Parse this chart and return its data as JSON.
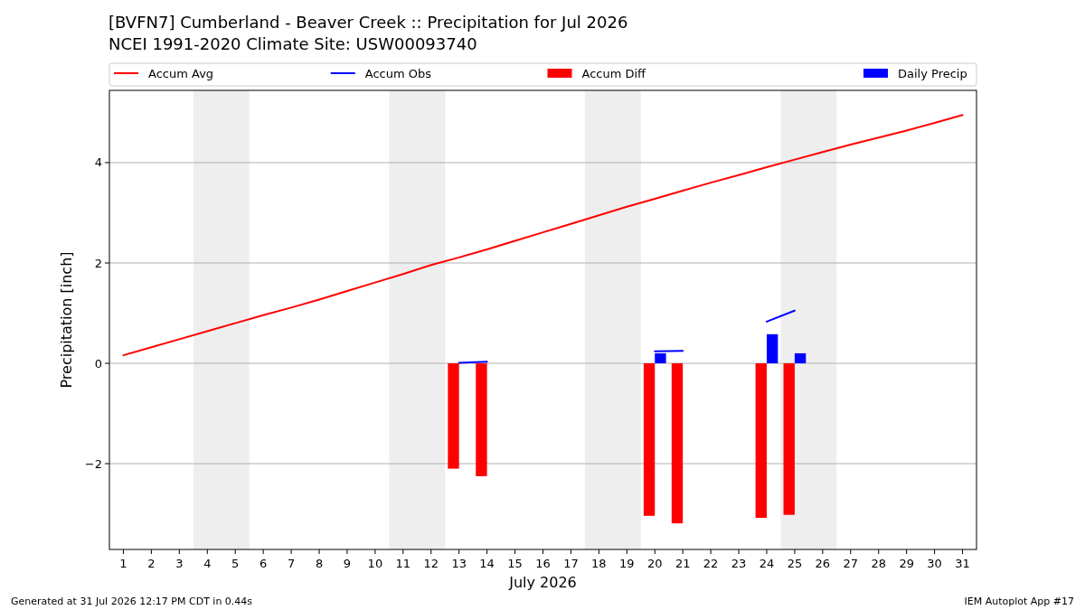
{
  "chart_data": {
    "type": "line",
    "title": "[BVFN7] Cumberland - Beaver Creek :: Precipitation for Jul 2026",
    "subtitle": "NCEI 1991-2020 Climate Site: USW00093740",
    "xlabel": "July 2026",
    "ylabel": "Precipitation [inch]",
    "x": [
      1,
      2,
      3,
      4,
      5,
      6,
      7,
      8,
      9,
      10,
      11,
      12,
      13,
      14,
      15,
      16,
      17,
      18,
      19,
      20,
      21,
      22,
      23,
      24,
      25,
      26,
      27,
      28,
      29,
      30,
      31
    ],
    "series": [
      {
        "name": "Accum Avg",
        "color": "#ff0000",
        "values": [
          0.16,
          0.32,
          0.48,
          0.64,
          0.8,
          0.96,
          1.11,
          1.27,
          1.44,
          1.61,
          1.78,
          1.96,
          2.11,
          2.27,
          2.44,
          2.61,
          2.78,
          2.95,
          3.12,
          3.28,
          3.44,
          3.6,
          3.75,
          3.91,
          4.06,
          4.21,
          4.36,
          4.5,
          4.64,
          4.79,
          4.95
        ]
      },
      {
        "name": "Accum Obs",
        "color": "#0000ff",
        "values": [
          null,
          null,
          null,
          null,
          null,
          null,
          null,
          null,
          null,
          null,
          null,
          null,
          0.01,
          0.03,
          null,
          null,
          null,
          null,
          null,
          0.24,
          0.25,
          null,
          null,
          0.83,
          1.05,
          null,
          null,
          null,
          null,
          null,
          null
        ]
      },
      {
        "name": "Accum Diff",
        "type": "bar",
        "color": "#ff0000",
        "values": [
          null,
          null,
          null,
          null,
          null,
          null,
          null,
          null,
          null,
          null,
          null,
          null,
          -2.1,
          -2.25,
          null,
          null,
          null,
          null,
          null,
          -3.04,
          -3.19,
          null,
          null,
          -3.08,
          -3.02,
          null,
          null,
          null,
          null,
          null,
          null
        ]
      },
      {
        "name": "Daily Precip",
        "type": "bar",
        "color": "#0000ff",
        "values": [
          null,
          null,
          null,
          null,
          null,
          null,
          null,
          null,
          null,
          null,
          null,
          null,
          0,
          0,
          null,
          null,
          null,
          null,
          null,
          0.2,
          0,
          null,
          null,
          0.58,
          0.2,
          null,
          null,
          null,
          null,
          null,
          null
        ]
      }
    ],
    "xlim": [
      0.5,
      31.5
    ],
    "xticks": [
      1,
      2,
      3,
      4,
      5,
      6,
      7,
      8,
      9,
      10,
      11,
      12,
      13,
      14,
      15,
      16,
      17,
      18,
      19,
      20,
      21,
      22,
      23,
      24,
      25,
      26,
      27,
      28,
      29,
      30,
      31
    ],
    "ylim": [
      -3.71,
      5.44
    ],
    "yticks": [
      {
        "value": -2,
        "label": "−2"
      },
      0,
      2,
      4
    ],
    "bands": [
      {
        "axis": "x",
        "from": 3.5,
        "to": 5.5,
        "color": "#eeeeee"
      },
      {
        "axis": "x",
        "from": 10.5,
        "to": 12.5,
        "color": "#eeeeee"
      },
      {
        "axis": "x",
        "from": 17.5,
        "to": 19.5,
        "color": "#eeeeee"
      },
      {
        "axis": "x",
        "from": 24.5,
        "to": 26.5,
        "color": "#eeeeee"
      }
    ],
    "grid": "y",
    "legend": "top",
    "annotations": [
      "Generated at 31 Jul 2026 12:17 PM CDT in 0.44s",
      "IEM Autoplot App #17"
    ]
  }
}
